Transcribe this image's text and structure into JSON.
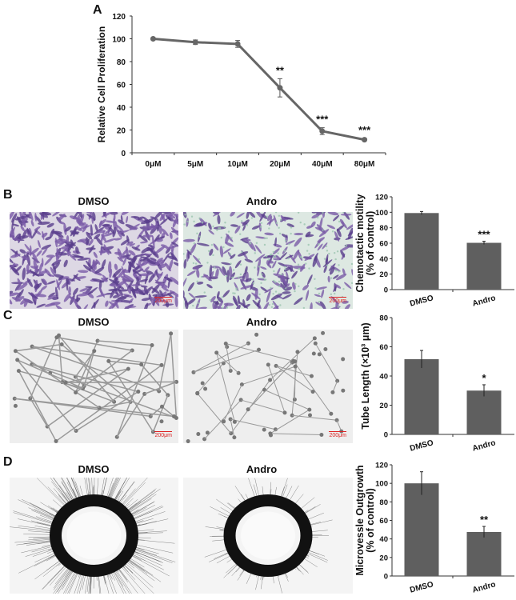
{
  "panels": {
    "a": "A",
    "b": "B",
    "c": "C",
    "d": "D"
  },
  "images": {
    "b": {
      "left": "DMSO",
      "right": "Andro",
      "scale": "200μm",
      "stain": "#6a4a9a",
      "bg": "#e8e6ea"
    },
    "c": {
      "left": "DMSO",
      "right": "Andro",
      "scale": "200μm"
    },
    "d": {
      "left": "DMSO",
      "right": "Andro"
    }
  },
  "chart_data": [
    {
      "id": "A",
      "type": "line",
      "categories": [
        "0μM",
        "5μM",
        "10μM",
        "20μM",
        "40μM",
        "80μM"
      ],
      "values": [
        100,
        97,
        95.5,
        57,
        19,
        11.5
      ],
      "errors": [
        1,
        2,
        3,
        8,
        3,
        1
      ],
      "annotations": [
        "",
        "",
        "",
        "**",
        "***",
        "***"
      ],
      "ylabel": "Relative Cell Proliferation",
      "ylim": [
        0,
        120
      ],
      "yticks": [
        0,
        20,
        40,
        60,
        80,
        100,
        120
      ],
      "color": "#666666"
    },
    {
      "id": "B",
      "type": "bar",
      "categories": [
        "DMSO",
        "Andro"
      ],
      "values": [
        99,
        60.5
      ],
      "errors": [
        2,
        2
      ],
      "annotations": [
        "",
        "***"
      ],
      "ylabel": [
        "Chemotactic motility",
        "(% of control)"
      ],
      "ylim": [
        0,
        120
      ],
      "yticks": [
        0,
        20,
        40,
        60,
        80,
        100,
        120
      ],
      "color": "#5f5f5f"
    },
    {
      "id": "C",
      "type": "bar",
      "categories": [
        "DMSO",
        "Andro"
      ],
      "values": [
        51.5,
        30
      ],
      "errors": [
        6,
        4
      ],
      "annotations": [
        "",
        "*"
      ],
      "ylabel": [
        "Tube Length (×10³ μm)"
      ],
      "ylim": [
        0,
        80
      ],
      "yticks": [
        0,
        20,
        40,
        60,
        80
      ],
      "color": "#5f5f5f"
    },
    {
      "id": "D",
      "type": "bar",
      "categories": [
        "DMSO",
        "Andro"
      ],
      "values": [
        100,
        47.5
      ],
      "errors": [
        12.5,
        6
      ],
      "annotations": [
        "",
        "**"
      ],
      "ylabel": [
        "Microvessle Outgrowth",
        "(% of control)"
      ],
      "ylim": [
        0,
        120
      ],
      "yticks": [
        0,
        20,
        40,
        60,
        80,
        100,
        120
      ],
      "color": "#5f5f5f"
    }
  ]
}
